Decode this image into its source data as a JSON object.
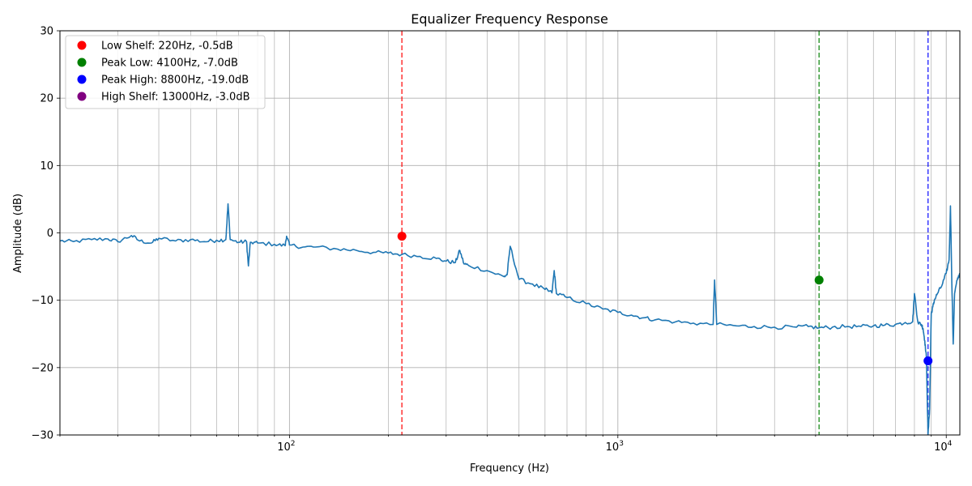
{
  "chart_data": {
    "type": "line",
    "title": "Equalizer Frequency Response",
    "xlabel": "Frequency (Hz)",
    "ylabel": "Amplitude (dB)",
    "xscale": "log",
    "xlim": [
      20,
      11000
    ],
    "ylim": [
      -30,
      30
    ],
    "grid": true,
    "legend_position": "top-left",
    "x_ticks": [
      {
        "value": 100,
        "label": "10",
        "exp": "2"
      },
      {
        "value": 1000,
        "label": "10",
        "exp": "3"
      },
      {
        "value": 10000,
        "label": "10",
        "exp": "4"
      }
    ],
    "y_ticks": [
      -30,
      -20,
      -10,
      0,
      10,
      20,
      30
    ],
    "line_color": "#1f77b4",
    "response_curve": {
      "x": [
        20,
        22,
        25,
        28,
        30,
        33,
        35,
        38,
        40,
        45,
        50,
        55,
        60,
        64,
        65,
        66,
        70,
        74,
        75,
        76,
        80,
        90,
        97,
        98,
        100,
        110,
        120,
        140,
        160,
        180,
        200,
        220,
        250,
        280,
        300,
        320,
        330,
        340,
        350,
        400,
        450,
        460,
        470,
        500,
        550,
        600,
        630,
        640,
        650,
        700,
        800,
        900,
        1000,
        1100,
        1200,
        1300,
        1500,
        1700,
        1950,
        1970,
        2000,
        2300,
        2600,
        3000,
        3500,
        3800,
        4100,
        4500,
        5000,
        5500,
        6000,
        6500,
        7000,
        7500,
        7900,
        8000,
        8200,
        8400,
        8500,
        8600,
        8700,
        8800,
        8900,
        9000,
        9100,
        9200,
        9400,
        9700,
        10000,
        10200,
        10300,
        10400,
        10500,
        10600,
        10800,
        11000
      ],
      "y": [
        -1.2,
        -1.3,
        -1.0,
        -0.9,
        -1.3,
        -0.4,
        -1.2,
        -1.5,
        -0.8,
        -1.2,
        -1.0,
        -1.3,
        -1.1,
        -1.0,
        4.3,
        -1.0,
        -1.4,
        -1.3,
        -4.9,
        -1.4,
        -1.5,
        -1.7,
        -1.9,
        -0.5,
        -1.8,
        -2.1,
        -2.1,
        -2.4,
        -2.6,
        -2.9,
        -3.0,
        -3.2,
        -3.5,
        -3.8,
        -4.2,
        -4.4,
        -2.6,
        -4.6,
        -4.8,
        -5.6,
        -6.5,
        -6.2,
        -2.0,
        -6.9,
        -7.6,
        -8.4,
        -8.9,
        -5.6,
        -9.0,
        -9.6,
        -10.5,
        -11.3,
        -11.8,
        -12.2,
        -12.6,
        -12.9,
        -13.2,
        -13.4,
        -13.6,
        -7.0,
        -13.6,
        -13.8,
        -13.9,
        -14.0,
        -14.0,
        -13.9,
        -14.1,
        -14.0,
        -13.9,
        -13.9,
        -13.8,
        -13.7,
        -13.6,
        -13.3,
        -13.2,
        -9.0,
        -13.3,
        -13.6,
        -14.2,
        -16.0,
        -18.5,
        -30.0,
        -26.0,
        -12.0,
        -11.0,
        -10.0,
        -9.0,
        -7.8,
        -6.0,
        -4.0,
        4.0,
        -7.5,
        -16.5,
        -9.0,
        -7.0,
        -6.0
      ]
    },
    "markers": [
      {
        "name": "Low Shelf: 220Hz, -0.5dB",
        "x": 220,
        "y": -0.5,
        "color": "#ff0000",
        "vline": true
      },
      {
        "name": "Peak Low: 4100Hz, -7.0dB",
        "x": 4100,
        "y": -7.0,
        "color": "#008000",
        "vline": true
      },
      {
        "name": "Peak High: 8800Hz, -19.0dB",
        "x": 8800,
        "y": -19.0,
        "color": "#0000ff",
        "vline": true
      },
      {
        "name": "High Shelf: 13000Hz, -3.0dB",
        "x": 13000,
        "y": -3.0,
        "color": "#800080",
        "vline": false
      }
    ]
  }
}
